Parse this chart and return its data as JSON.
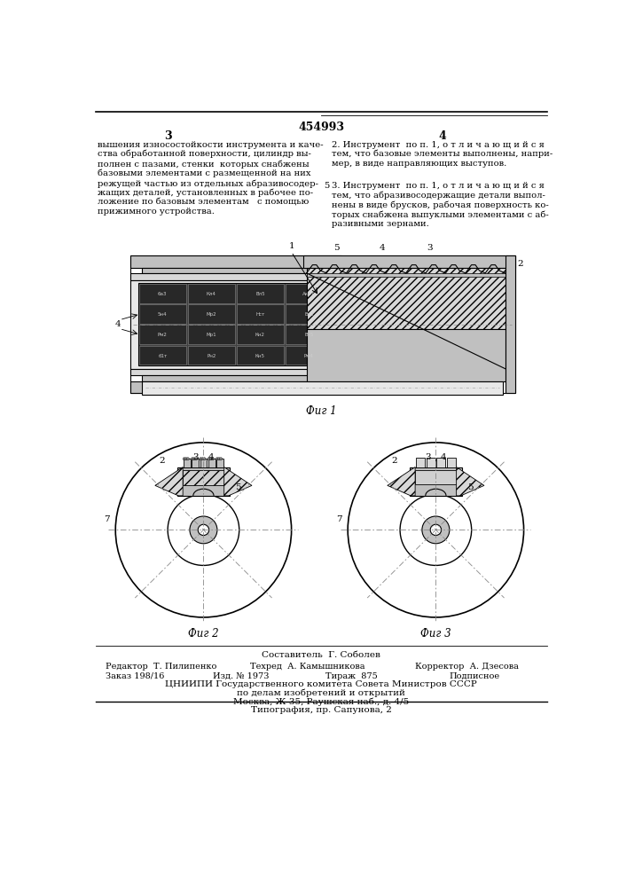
{
  "patent_number": "454993",
  "col_left_num": "3",
  "col_right_num": "4",
  "col_left_text": "вышения износостойкости инструмента и каче-\nства обработанной поверхности, цилиндр вы-\nполнен с пазами, стенки  которых снабжены\nбазовыми элементами с размещенной на них\nрежущей частью из отдельных абразивосодер-\nжащих деталей, установленных в рабочее по-\nложение по базовым элементам   с помощью\nприжимного устройства.",
  "col_right_text_2": "2. Инструмент  по п. 1, о т л и ч а ю щ и й с я\nтем, что базовые элементы выполнены, напри-\nмер, в виде направляющих выступов.",
  "col_right_num_5": "5",
  "col_right_text_3": "3. Инструмент  по п. 1, о т л и ч а ю щ и й с я\nтем, что абразивосодержащие детали выпол-\nнены в виде брусков, рабочая поверхность ко-\nторых снабжена выпуклыми элементами с аб-\nразивными зернами.",
  "fig1_caption": "Фиг 1",
  "fig2_caption": "Фиг 2",
  "fig3_caption": "Фиг 3",
  "footer_composer_label": "Составитель",
  "footer_composer_name": "Г. Соболев",
  "footer_editor_label": "Редактор",
  "footer_editor_name": "Т. Пилипенко",
  "footer_tech_label": "Техред",
  "footer_tech_name": "А. Камышникова",
  "footer_corrector_label": "Корректор",
  "footer_corrector_name": "А. Дзесова",
  "footer_order_label": "Заказ 198/16",
  "footer_edition_label": "Изд. № 1973",
  "footer_print_label": "Тираж  875",
  "footer_sign_label": "Подписное",
  "footer_org": "ЦНИИПИ Государственного комитета Совета Министров СССР",
  "footer_org2": "по делам изобретений и открытий",
  "footer_org3": "Москва, Ж-35, Раушская наб., д. 4/5",
  "footer_print": "Типография, пр. Сапунова, 2",
  "bg_color": "#ffffff",
  "text_color": "#000000"
}
